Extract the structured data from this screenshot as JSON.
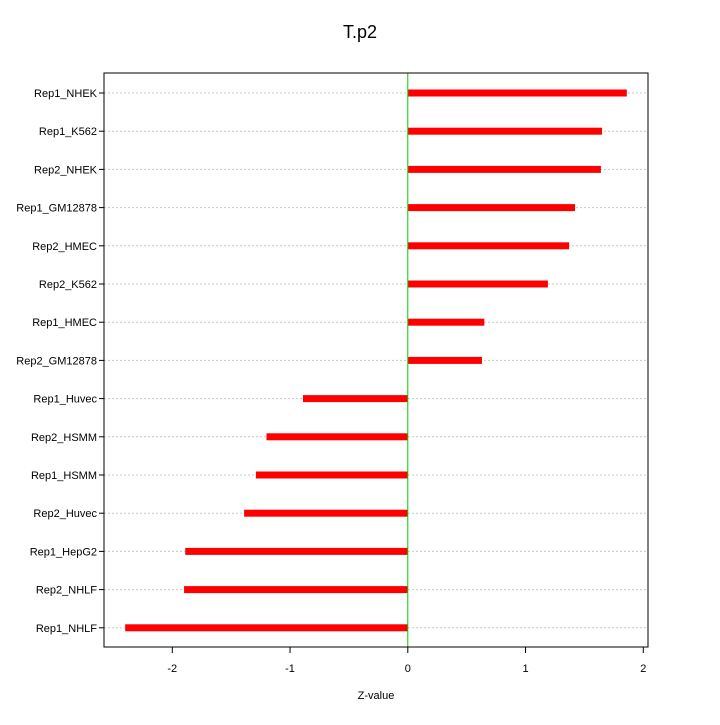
{
  "chart_data": {
    "type": "bar",
    "orientation": "horizontal",
    "title": "T.p2",
    "xlabel": "Z-value",
    "ylabel": "",
    "categories": [
      "Rep1_NHEK",
      "Rep1_K562",
      "Rep2_NHEK",
      "Rep1_GM12878",
      "Rep2_HMEC",
      "Rep2_K562",
      "Rep1_HMEC",
      "Rep2_GM12878",
      "Rep1_Huvec",
      "Rep2_HSMM",
      "Rep1_HSMM",
      "Rep2_Huvec",
      "Rep1_HepG2",
      "Rep2_NHLF",
      "Rep1_NHLF"
    ],
    "values": [
      1.86,
      1.65,
      1.64,
      1.42,
      1.37,
      1.19,
      0.65,
      0.63,
      -0.89,
      -1.2,
      -1.29,
      -1.39,
      -1.89,
      -1.9,
      -2.4
    ],
    "xlim": [
      -2.58,
      2.04
    ],
    "xticks": [
      -2,
      -1,
      0,
      1,
      2
    ],
    "xtick_labels": [
      "-2",
      "-1",
      "0",
      "1",
      "2"
    ],
    "grid": "horizontal dotted",
    "legend": "none",
    "colors": {
      "bar": "#ff0000",
      "zero_line": "#00cc00",
      "grid": "#c8c8c8",
      "axis": "#000000"
    }
  }
}
